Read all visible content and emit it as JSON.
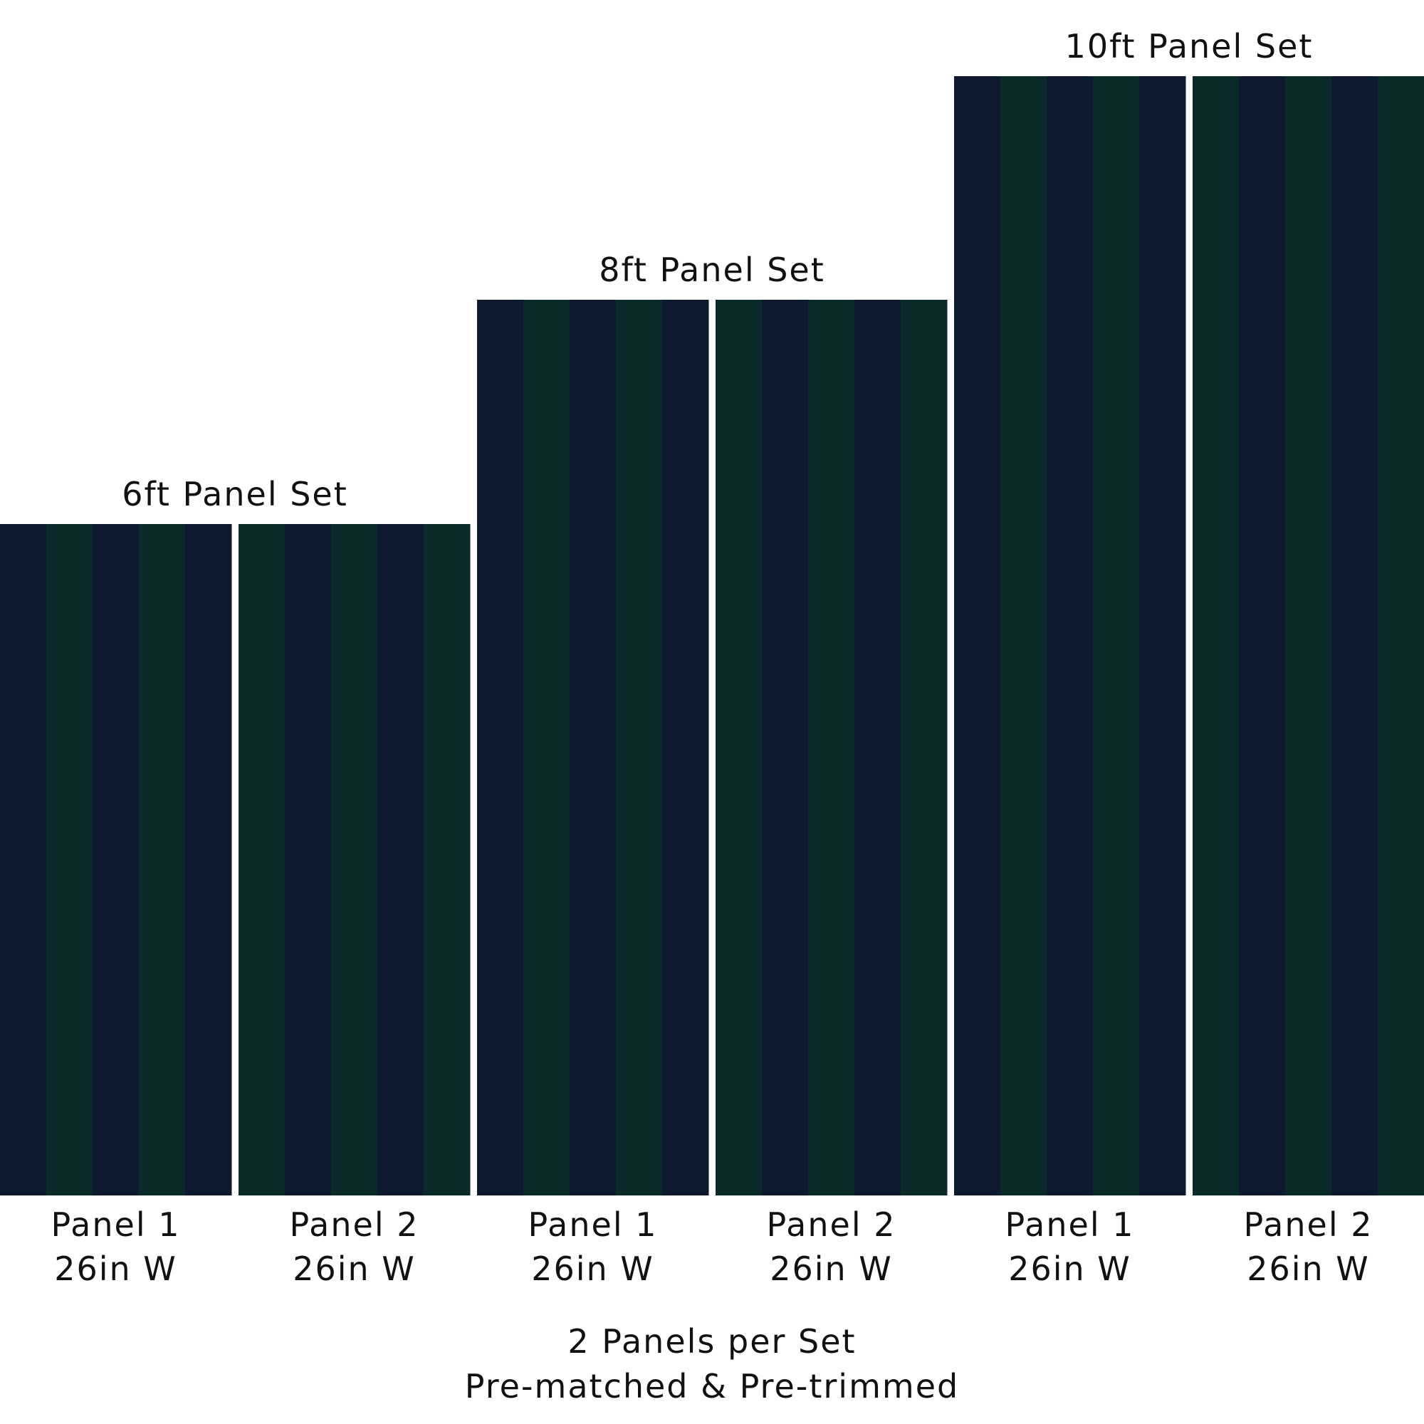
{
  "sets": [
    {
      "title": "6ft Panel Set",
      "panels": [
        {
          "name": "Panel 1",
          "width": "26in W"
        },
        {
          "name": "Panel 2",
          "width": "26in W"
        }
      ]
    },
    {
      "title": "8ft Panel Set",
      "panels": [
        {
          "name": "Panel 1",
          "width": "26in W"
        },
        {
          "name": "Panel 2",
          "width": "26in W"
        }
      ]
    },
    {
      "title": "10ft Panel Set",
      "panels": [
        {
          "name": "Panel 1",
          "width": "26in W"
        },
        {
          "name": "Panel 2",
          "width": "26in W"
        }
      ]
    }
  ],
  "footer": {
    "line1": "2 Panels per Set",
    "line2": "Pre-matched & Pre-trimmed"
  }
}
